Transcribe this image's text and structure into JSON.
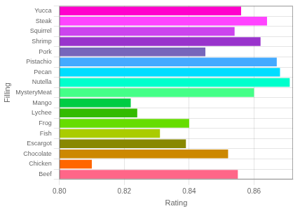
{
  "chart_data": {
    "type": "bar",
    "orientation": "horizontal",
    "categories": [
      "Beef",
      "Chicken",
      "Chocolate",
      "Escargot",
      "Fish",
      "Frog",
      "Lychee",
      "Mango",
      "MysteryMeat",
      "Nutella",
      "Pecan",
      "Pistachio",
      "Pork",
      "Shrimp",
      "Squirrel",
      "Steak",
      "Yucca"
    ],
    "values": [
      0.855,
      0.81,
      0.852,
      0.839,
      0.831,
      0.84,
      0.824,
      0.822,
      0.86,
      0.871,
      0.868,
      0.867,
      0.845,
      0.862,
      0.854,
      0.864,
      0.856
    ],
    "colors": [
      "#FF6688",
      "#FF6600",
      "#CC8800",
      "#888800",
      "#AACC00",
      "#66DD00",
      "#33BB00",
      "#00CC44",
      "#44FF88",
      "#00FFCC",
      "#00DDFF",
      "#44AAFF",
      "#7766BB",
      "#9933CC",
      "#CC44EE",
      "#FF44FF",
      "#FF00CC"
    ],
    "xlabel": "Rating",
    "ylabel": "Filling",
    "xlim": [
      0.8,
      0.872
    ],
    "xticks": [
      {
        "value": 0.8,
        "label": "0.80"
      },
      0.82,
      0.84,
      0.86
    ],
    "grid": true
  }
}
